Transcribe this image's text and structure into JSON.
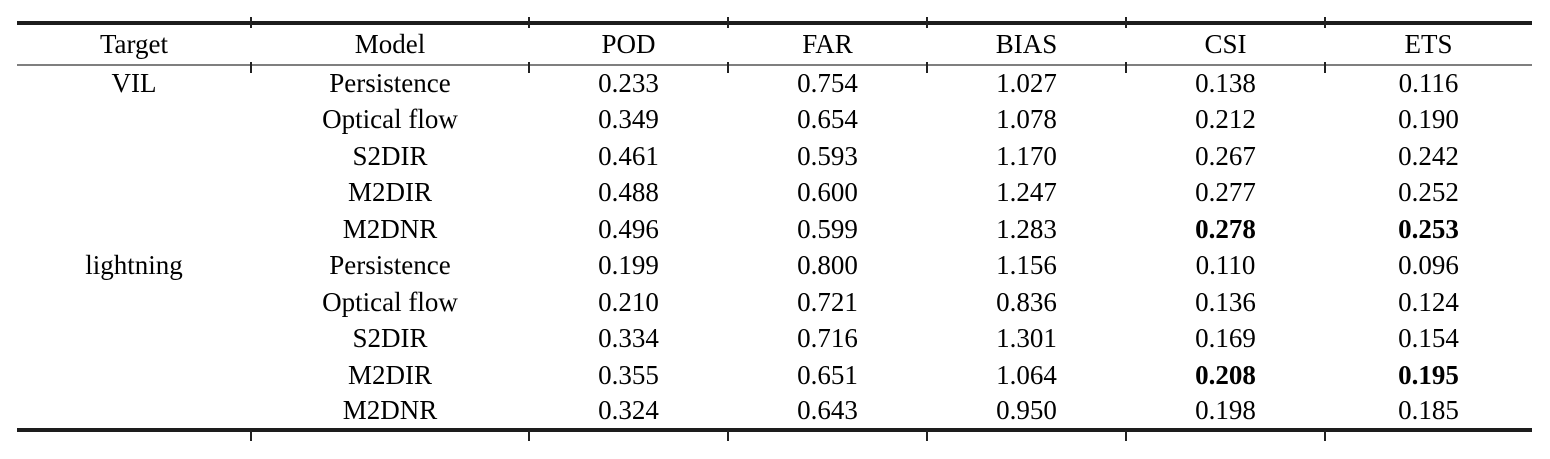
{
  "table": {
    "headers": {
      "target": "Target",
      "model": "Model",
      "pod": "POD",
      "far": "FAR",
      "bias": "BIAS",
      "csi": "CSI",
      "ets": "ETS"
    },
    "rows": [
      {
        "target": "VIL",
        "model": "Persistence",
        "pod": "0.233",
        "far": "0.754",
        "bias": "1.027",
        "csi": "0.138",
        "ets": "0.116",
        "bold": []
      },
      {
        "target": "",
        "model": "Optical flow",
        "pod": "0.349",
        "far": "0.654",
        "bias": "1.078",
        "csi": "0.212",
        "ets": "0.190",
        "bold": []
      },
      {
        "target": "",
        "model": "S2DIR",
        "pod": "0.461",
        "far": "0.593",
        "bias": "1.170",
        "csi": "0.267",
        "ets": "0.242",
        "bold": []
      },
      {
        "target": "",
        "model": "M2DIR",
        "pod": "0.488",
        "far": "0.600",
        "bias": "1.247",
        "csi": "0.277",
        "ets": "0.252",
        "bold": []
      },
      {
        "target": "",
        "model": "M2DNR",
        "pod": "0.496",
        "far": "0.599",
        "bias": "1.283",
        "csi": "0.278",
        "ets": "0.253",
        "bold": [
          "csi",
          "ets"
        ]
      },
      {
        "target": "lightning",
        "model": "Persistence",
        "pod": "0.199",
        "far": "0.800",
        "bias": "1.156",
        "csi": "0.110",
        "ets": "0.096",
        "bold": []
      },
      {
        "target": "",
        "model": "Optical flow",
        "pod": "0.210",
        "far": "0.721",
        "bias": "0.836",
        "csi": "0.136",
        "ets": "0.124",
        "bold": []
      },
      {
        "target": "",
        "model": "S2DIR",
        "pod": "0.334",
        "far": "0.716",
        "bias": "1.301",
        "csi": "0.169",
        "ets": "0.154",
        "bold": []
      },
      {
        "target": "",
        "model": "M2DIR",
        "pod": "0.355",
        "far": "0.651",
        "bias": "1.064",
        "csi": "0.208",
        "ets": "0.195",
        "bold": [
          "csi",
          "ets"
        ]
      },
      {
        "target": "",
        "model": "M2DNR",
        "pod": "0.324",
        "far": "0.643",
        "bias": "0.950",
        "csi": "0.198",
        "ets": "0.185",
        "bold": []
      }
    ],
    "rule_color": "#1d1d1d",
    "header_rule_color": "#7f7f7f"
  }
}
